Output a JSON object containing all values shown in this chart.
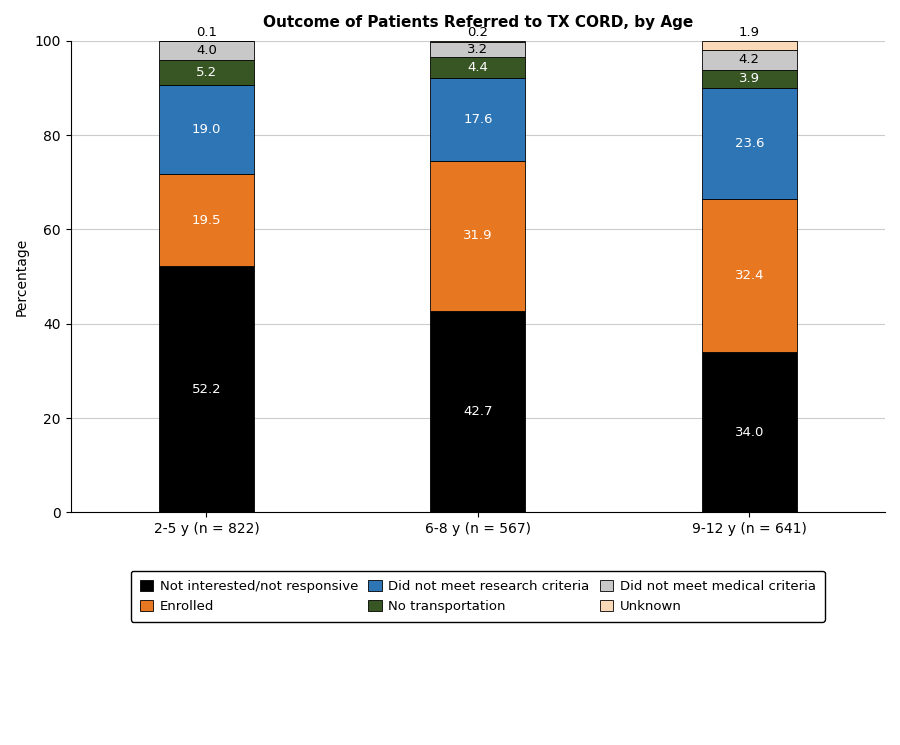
{
  "title": "Outcome of Patients Referred to TX CORD, by Age",
  "categories": [
    "2-5 y (n = 822)",
    "6-8 y (n = 567)",
    "9-12 y (n = 641)"
  ],
  "ylabel": "Percentage",
  "ylim": [
    0,
    100
  ],
  "yticks": [
    0,
    20,
    40,
    60,
    80,
    100
  ],
  "segments": [
    {
      "label": "Not interested/not responsive",
      "color": "#000000",
      "values": [
        52.2,
        42.7,
        34.0
      ],
      "text_color": "white",
      "min_show": 2.0
    },
    {
      "label": "Enrolled",
      "color": "#E87722",
      "values": [
        19.5,
        31.9,
        32.4
      ],
      "text_color": "white",
      "min_show": 2.0
    },
    {
      "label": "Did not meet research criteria",
      "color": "#2E75B6",
      "values": [
        19.0,
        17.6,
        23.6
      ],
      "text_color": "white",
      "min_show": 2.0
    },
    {
      "label": "No transportation",
      "color": "#375623",
      "values": [
        5.2,
        4.4,
        3.9
      ],
      "text_color": "white",
      "min_show": 2.0
    },
    {
      "label": "Did not meet medical criteria",
      "color": "#C8C8C8",
      "values": [
        4.0,
        3.2,
        4.2
      ],
      "text_color": "black",
      "min_show": 2.0
    },
    {
      "label": "Unknown",
      "color": "#F9D9B8",
      "values": [
        0.1,
        0.2,
        1.9
      ],
      "text_color": "black",
      "min_show": 99.0
    }
  ],
  "bar_width": 0.35,
  "figsize": [
    9.0,
    7.45
  ],
  "dpi": 100,
  "background_color": "#ffffff",
  "grid_color": "#cccccc",
  "title_fontsize": 11,
  "label_fontsize": 10,
  "tick_fontsize": 10,
  "legend_fontsize": 9.5,
  "value_fontsize": 9.5
}
